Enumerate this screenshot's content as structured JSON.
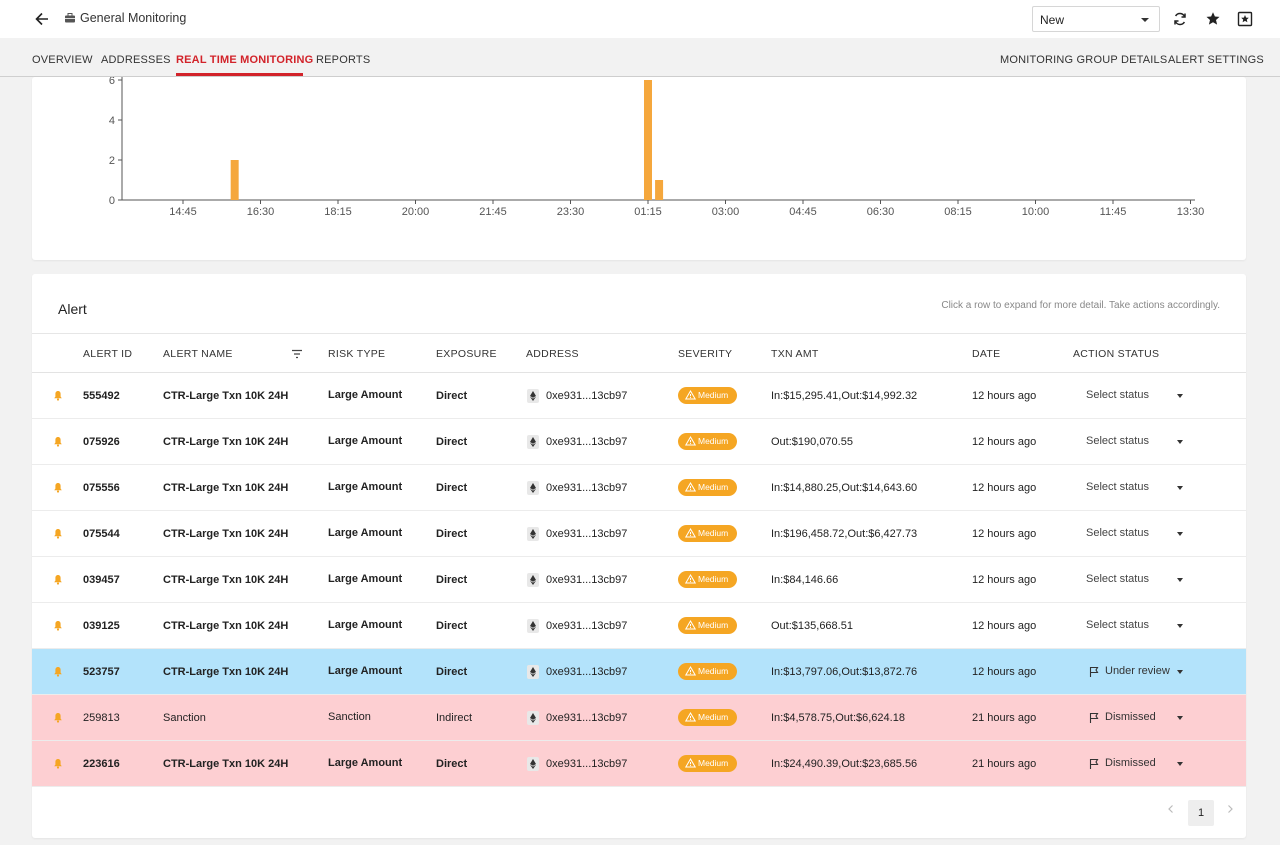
{
  "header": {
    "title": "General Monitoring",
    "status_select": "New"
  },
  "tabs": {
    "left": [
      "OVERVIEW",
      "ADDRESSES",
      "REAL TIME MONITORING",
      "REPORTS"
    ],
    "active_index": 2,
    "right": [
      "MONITORING GROUP DETAILS",
      "ALERT SETTINGS"
    ]
  },
  "chart_data": {
    "type": "bar",
    "title": "",
    "xlabel": "",
    "ylabel": "",
    "ylim": [
      0,
      6
    ],
    "yticks": [
      0,
      2,
      4,
      6
    ],
    "xticks": [
      "14:45",
      "16:30",
      "18:15",
      "20:00",
      "21:45",
      "23:30",
      "01:15",
      "03:00",
      "04:45",
      "06:30",
      "08:15",
      "10:00",
      "11:45",
      "13:30"
    ],
    "bar_color": "#f5a73c",
    "bars": [
      {
        "x": "15:55",
        "value": 2
      },
      {
        "x": "01:15",
        "value": 6
      },
      {
        "x": "01:30",
        "value": 1
      }
    ],
    "grid": false,
    "legend": "none"
  },
  "alerts": {
    "title": "Alert",
    "hint": "Click a row to expand for more detail. Take actions accordingly.",
    "columns": [
      "ALERT ID",
      "ALERT NAME",
      "RISK TYPE",
      "EXPOSURE",
      "ADDRESS",
      "SEVERITY",
      "TXN AMT",
      "DATE",
      "ACTION STATUS"
    ],
    "rows": [
      {
        "id": "555492",
        "name": "CTR-Large Txn 10K 24H",
        "risk": "Large Amount",
        "exposure": "Direct",
        "address": "0xe931...13cb97",
        "severity": "Medium",
        "txn": "In:$15,295.41,Out:$14,992.32",
        "date": "12 hours ago",
        "status": "Select status",
        "state": "none",
        "bold": true
      },
      {
        "id": "075926",
        "name": "CTR-Large Txn 10K 24H",
        "risk": "Large Amount",
        "exposure": "Direct",
        "address": "0xe931...13cb97",
        "severity": "Medium",
        "txn": "Out:$190,070.55",
        "date": "12 hours ago",
        "status": "Select status",
        "state": "none",
        "bold": true
      },
      {
        "id": "075556",
        "name": "CTR-Large Txn 10K 24H",
        "risk": "Large Amount",
        "exposure": "Direct",
        "address": "0xe931...13cb97",
        "severity": "Medium",
        "txn": "In:$14,880.25,Out:$14,643.60",
        "date": "12 hours ago",
        "status": "Select status",
        "state": "none",
        "bold": true
      },
      {
        "id": "075544",
        "name": "CTR-Large Txn 10K 24H",
        "risk": "Large Amount",
        "exposure": "Direct",
        "address": "0xe931...13cb97",
        "severity": "Medium",
        "txn": "In:$196,458.72,Out:$6,427.73",
        "date": "12 hours ago",
        "status": "Select status",
        "state": "none",
        "bold": true
      },
      {
        "id": "039457",
        "name": "CTR-Large Txn 10K 24H",
        "risk": "Large Amount",
        "exposure": "Direct",
        "address": "0xe931...13cb97",
        "severity": "Medium",
        "txn": "In:$84,146.66",
        "date": "12 hours ago",
        "status": "Select status",
        "state": "none",
        "bold": true
      },
      {
        "id": "039125",
        "name": "CTR-Large Txn 10K 24H",
        "risk": "Large Amount",
        "exposure": "Direct",
        "address": "0xe931...13cb97",
        "severity": "Medium",
        "txn": "Out:$135,668.51",
        "date": "12 hours ago",
        "status": "Select status",
        "state": "none",
        "bold": true
      },
      {
        "id": "523757",
        "name": "CTR-Large Txn 10K 24H",
        "risk": "Large Amount",
        "exposure": "Direct",
        "address": "0xe931...13cb97",
        "severity": "Medium",
        "txn": "In:$13,797.06,Out:$13,872.76",
        "date": "12 hours ago",
        "status": "Under review",
        "state": "review",
        "bold": true
      },
      {
        "id": "259813",
        "name": "Sanction",
        "risk": "Sanction",
        "exposure": "Indirect",
        "address": "0xe931...13cb97",
        "severity": "Medium",
        "txn": "In:$4,578.75,Out:$6,624.18",
        "date": "21 hours ago",
        "status": "Dismissed",
        "state": "dismissed",
        "bold": false
      },
      {
        "id": "223616",
        "name": "CTR-Large Txn 10K 24H",
        "risk": "Large Amount",
        "exposure": "Direct",
        "address": "0xe931...13cb97",
        "severity": "Medium",
        "txn": "In:$24,490.39,Out:$23,685.56",
        "date": "21 hours ago",
        "status": "Dismissed",
        "state": "dismissed",
        "bold": true
      }
    ],
    "current_page": "1"
  },
  "colors": {
    "accent": "#d2232a",
    "bar": "#f5a73c",
    "severity": "#f5a623",
    "review_row": "#b3e3fb",
    "dismissed_row": "#fdcfd2"
  }
}
